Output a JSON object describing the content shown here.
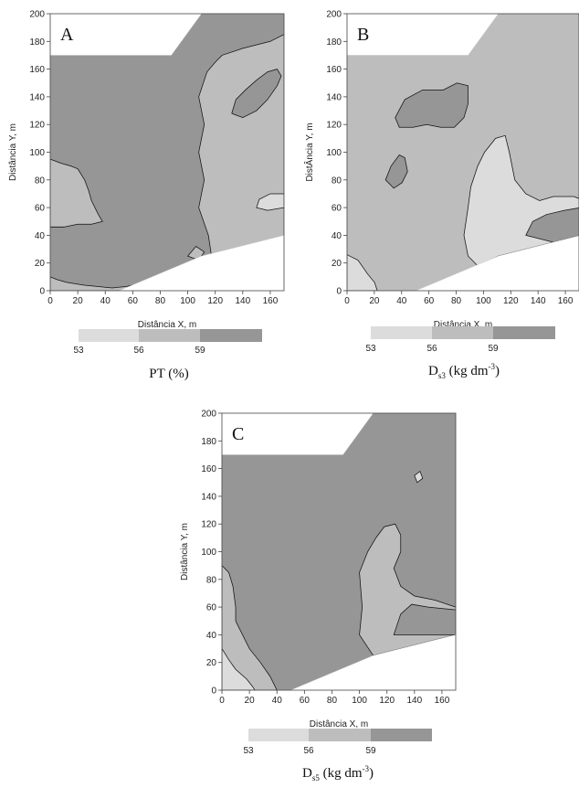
{
  "colors": {
    "low": "#dcdcdc",
    "mid": "#bdbdbd",
    "high": "#969696",
    "contour": "#111111"
  },
  "chart_data": [
    {
      "type": "heatmap",
      "panel": "A",
      "xlabel": "Distância X, m",
      "ylabel": "Distância Y, m",
      "xlim": [
        0,
        170
      ],
      "ylim": [
        0,
        200
      ],
      "x_ticks": [
        0,
        20,
        40,
        60,
        80,
        100,
        120,
        140,
        160
      ],
      "y_ticks": [
        0,
        20,
        40,
        60,
        80,
        100,
        120,
        140,
        160,
        180,
        200
      ],
      "legend_ticks": [
        "53",
        "56",
        "59"
      ],
      "caption": "PT (%)"
    },
    {
      "type": "heatmap",
      "panel": "B",
      "xlabel": "Distância X, m",
      "ylabel": "DistÂncia Y, m",
      "xlim": [
        0,
        170
      ],
      "ylim": [
        0,
        200
      ],
      "x_ticks": [
        0,
        20,
        40,
        60,
        80,
        100,
        120,
        140,
        160
      ],
      "y_ticks": [
        0,
        20,
        40,
        60,
        80,
        100,
        120,
        140,
        160,
        180,
        200
      ],
      "legend_ticks": [
        "53",
        "56",
        "59"
      ],
      "caption_main": "D",
      "caption_sub": "s3",
      "caption_rest": " (kg dm",
      "caption_sup": "-3",
      "caption_end": ")"
    },
    {
      "type": "heatmap",
      "panel": "C",
      "xlabel": "Distância X, m",
      "ylabel": "Distância Y, m",
      "xlim": [
        0,
        170
      ],
      "ylim": [
        0,
        200
      ],
      "x_ticks": [
        0,
        20,
        40,
        60,
        80,
        100,
        120,
        140,
        160
      ],
      "y_ticks": [
        0,
        20,
        40,
        60,
        80,
        100,
        120,
        140,
        160,
        180,
        200
      ],
      "legend_ticks": [
        "53",
        "56",
        "59"
      ],
      "caption_main": "D",
      "caption_sub": "s5",
      "caption_rest": " (kg dm",
      "caption_sup": "-3",
      "caption_end": ")"
    }
  ]
}
